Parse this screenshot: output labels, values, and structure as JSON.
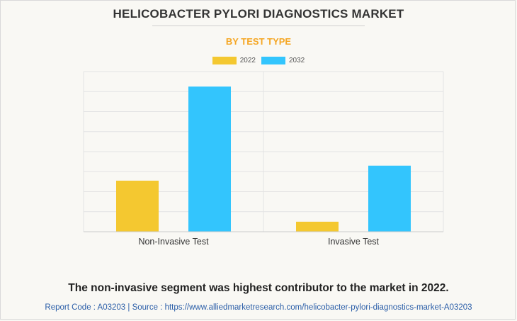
{
  "header": {
    "title": "HELICOBACTER PYLORI DIAGNOSTICS MARKET",
    "subtitle": "BY TEST TYPE"
  },
  "colors": {
    "accent": "#f5a623",
    "series_2022": "#f4c830",
    "series_2032": "#33c5fd",
    "grid": "#e3e3e3",
    "axis": "#cccccc"
  },
  "chart_data": {
    "type": "bar",
    "title": "HELICOBACTER PYLORI DIAGNOSTICS MARKET",
    "subtitle": "BY TEST TYPE",
    "categories": [
      "Non-Invasive Test",
      "Invasive Test"
    ],
    "series": [
      {
        "name": "2022",
        "color": "#f4c830",
        "values": [
          255,
          50
        ]
      },
      {
        "name": "2032",
        "color": "#33c5fd",
        "values": [
          725,
          330
        ]
      }
    ],
    "ylim": [
      0,
      800
    ],
    "gridlines": 8,
    "y_tick_labels_shown": false,
    "legend": "top-center",
    "grid": true
  },
  "footer": {
    "note": "The non-invasive segment was highest contributor to the market in 2022.",
    "source": "Report Code : A03203  |  Source : https://www.alliedmarketresearch.com/helicobacter-pylori-diagnostics-market-A03203"
  }
}
